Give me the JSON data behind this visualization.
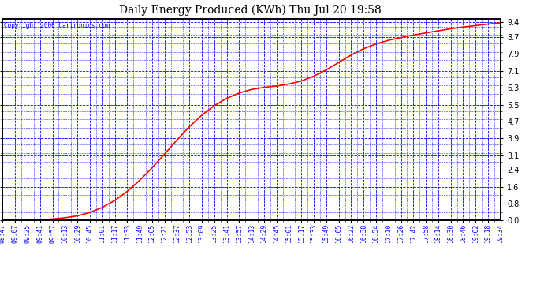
{
  "title": "Daily Energy Produced (KWh) Thu Jul 20 19:58",
  "copyright_text": "Copyright 2006 Cartronics.com",
  "background_color": "#ffffff",
  "plot_bg_color": "#ffffff",
  "line_color": "#ff0000",
  "grid_major_color": "#0000ff",
  "grid_minor_color": "#0000ff",
  "yticks": [
    0.0,
    0.8,
    1.6,
    2.4,
    3.1,
    3.9,
    4.7,
    5.5,
    6.3,
    7.1,
    7.9,
    8.7,
    9.4
  ],
  "ymin": 0.0,
  "ymax": 9.55,
  "xtick_labels": [
    "08:47",
    "09:07",
    "09:25",
    "09:41",
    "09:57",
    "10:13",
    "10:29",
    "10:45",
    "11:01",
    "11:17",
    "11:33",
    "11:49",
    "12:05",
    "12:21",
    "12:37",
    "12:53",
    "13:09",
    "13:25",
    "13:41",
    "13:57",
    "14:13",
    "14:29",
    "14:45",
    "15:01",
    "15:17",
    "15:33",
    "15:49",
    "16:05",
    "16:22",
    "16:38",
    "16:54",
    "17:10",
    "17:26",
    "17:42",
    "17:58",
    "18:14",
    "18:30",
    "18:46",
    "19:02",
    "19:18",
    "19:34"
  ],
  "curve_y_values": [
    0.02,
    0.02,
    0.02,
    0.04,
    0.07,
    0.13,
    0.22,
    0.38,
    0.62,
    0.95,
    1.38,
    1.9,
    2.5,
    3.15,
    3.82,
    4.45,
    5.0,
    5.45,
    5.8,
    6.05,
    6.22,
    6.32,
    6.38,
    6.48,
    6.62,
    6.85,
    7.15,
    7.5,
    7.85,
    8.15,
    8.38,
    8.55,
    8.68,
    8.8,
    8.9,
    9.0,
    9.1,
    9.18,
    9.25,
    9.32,
    9.38
  ]
}
